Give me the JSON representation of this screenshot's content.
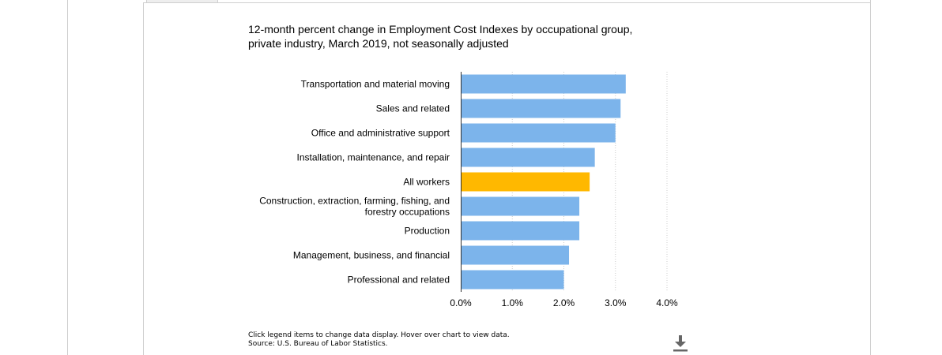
{
  "chart_data": {
    "type": "bar",
    "orientation": "horizontal",
    "title": "12-month percent change in Employment Cost Indexes by occupational group, private industry, March 2019, not seasonally adjusted",
    "title_lines": [
      "12-month percent change in Employment Cost Indexes by occupational group,",
      "private industry, March 2019, not seasonally adjusted"
    ],
    "categories": [
      [
        "Transportation and material moving"
      ],
      [
        "Sales and related"
      ],
      [
        "Office and administrative support"
      ],
      [
        "Installation, maintenance, and repair"
      ],
      [
        "All workers"
      ],
      [
        "Construction, extraction, farming, fishing, and",
        "forestry occupations"
      ],
      [
        "Production"
      ],
      [
        "Management, business, and financial"
      ],
      [
        "Professional and related"
      ]
    ],
    "values": [
      3.2,
      3.1,
      3.0,
      2.6,
      2.5,
      2.3,
      2.3,
      2.1,
      2.0
    ],
    "highlight_index": 4,
    "colors": {
      "bar": "#7cb4eb",
      "highlight": "#ffb800",
      "grid": "#cccccc",
      "axis": "#333333"
    },
    "xlim": [
      0,
      4
    ],
    "xticks": [
      0,
      1,
      2,
      3,
      4
    ],
    "xtick_labels": [
      "0.0%",
      "1.0%",
      "2.0%",
      "3.0%",
      "4.0%"
    ],
    "xlabel": "",
    "ylabel": "",
    "grid": "vertical dotted",
    "legend": "none"
  },
  "footnote": {
    "line1": "Click legend items to change data display. Hover over chart to view data.",
    "line2": "Source: U.S. Bureau of Labor Statistics."
  },
  "icons": {
    "download": "download-icon"
  }
}
